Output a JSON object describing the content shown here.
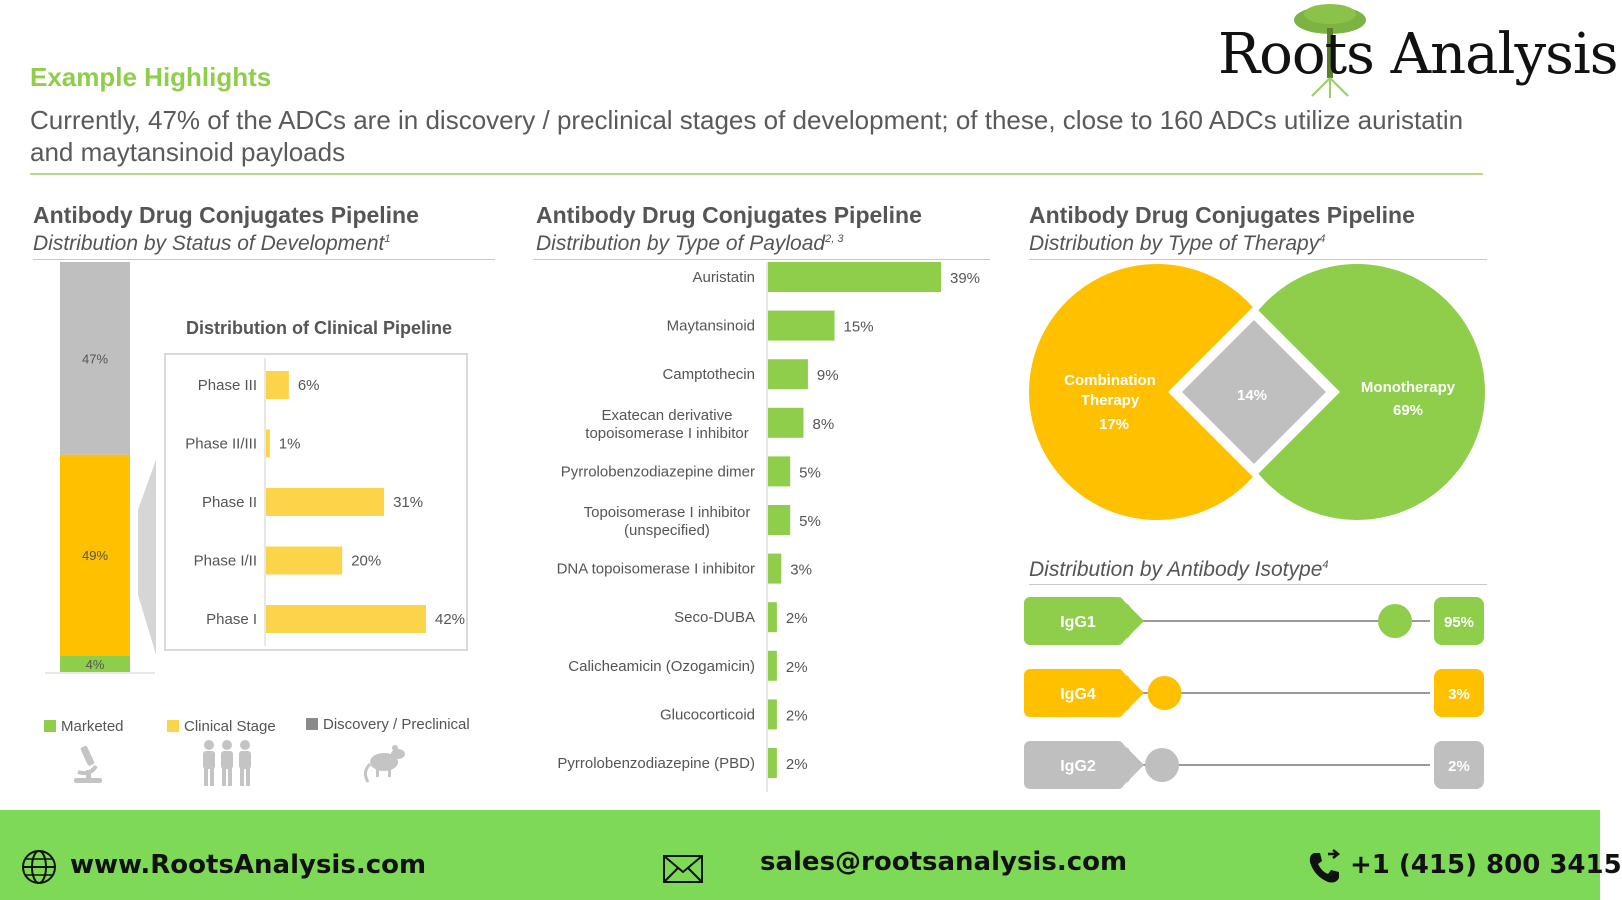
{
  "header": {
    "kicker": "Example Highlights",
    "headline": "Currently, 47% of the ADCs are in discovery / preclinical stages of development; of these, close to 160 ADCs utilize auristatin and maytansinoid payloads"
  },
  "logo": {
    "text": "Roots Analysis"
  },
  "panels": {
    "status": {
      "title": "Antibody Drug Conjugates Pipeline",
      "subtitle": "Distribution by Status of Development",
      "note": "1"
    },
    "payload": {
      "title": "Antibody Drug Conjugates Pipeline",
      "subtitle": "Distribution by Type of Payload",
      "note": "2, 3"
    },
    "therapy": {
      "title": "Antibody Drug Conjugates Pipeline",
      "subtitle": "Distribution by Type of Therapy",
      "note": "4"
    },
    "isotype": {
      "subtitle": "Distribution by Antibody Isotype",
      "note": "4"
    }
  },
  "legend": {
    "marketed": "Marketed",
    "clinical": "Clinical Stage",
    "discovery": "Discovery / Preclinical"
  },
  "footer": {
    "website": "www.RootsAnalysis.com",
    "email": "sales@rootsanalysis.com",
    "phone": "+1 (415) 800 3415"
  },
  "colors": {
    "green": "#8fce4a",
    "yellow": "#ffc000",
    "gray": "#bfbfbf",
    "clinical_bar": "#fcd449",
    "footer": "#7ed957"
  },
  "icons": [
    "microscope-icon",
    "people-icon",
    "rat-icon",
    "globe-icon",
    "envelope-icon",
    "phone-icon"
  ],
  "chart_data": [
    {
      "type": "bar",
      "id": "status",
      "stacked": true,
      "categories": [
        "Status of Development"
      ],
      "series": [
        {
          "name": "Marketed",
          "values": [
            4
          ]
        },
        {
          "name": "Clinical Stage",
          "values": [
            49
          ]
        },
        {
          "name": "Discovery / Preclinical",
          "values": [
            47
          ]
        }
      ],
      "labels": [
        "4%",
        "49%",
        "47%"
      ],
      "ylim": [
        0,
        100
      ]
    },
    {
      "type": "bar",
      "id": "clinical",
      "orientation": "horizontal",
      "title": "Distribution of Clinical Pipeline",
      "categories": [
        "Phase III",
        "Phase II/III",
        "Phase II",
        "Phase I/II",
        "Phase I"
      ],
      "values": [
        6,
        1,
        31,
        20,
        42
      ],
      "labels": [
        "6%",
        "1%",
        "31%",
        "20%",
        "42%"
      ]
    },
    {
      "type": "bar",
      "id": "payload",
      "orientation": "horizontal",
      "categories": [
        [
          "Auristatin"
        ],
        [
          "Maytansinoid"
        ],
        [
          "Camptothecin"
        ],
        [
          "Exatecan derivative",
          "topoisomerase I inhibitor"
        ],
        [
          "Pyrrolobenzodiazepine dimer"
        ],
        [
          "Topoisomerase I inhibitor",
          "(unspecified)"
        ],
        [
          "DNA topoisomerase I inhibitor"
        ],
        [
          "Seco-DUBA"
        ],
        [
          "Calicheamicin (Ozogamicin)"
        ],
        [
          "Glucocorticoid"
        ],
        [
          "Pyrrolobenzodiazepine (PBD)"
        ]
      ],
      "values": [
        39,
        15,
        9,
        8,
        5,
        5,
        3,
        2,
        2,
        2,
        2
      ],
      "labels": [
        "39%",
        "15%",
        "9%",
        "8%",
        "5%",
        "5%",
        "3%",
        "2%",
        "2%",
        "2%",
        "2%"
      ]
    },
    {
      "type": "pie",
      "id": "therapy",
      "segments": [
        {
          "label": [
            "Combination",
            "Therapy"
          ],
          "value": 17,
          "value_label": "17%"
        },
        {
          "label": [],
          "value": 14,
          "value_label": "14%"
        },
        {
          "label": [
            "Monotherapy"
          ],
          "value": 69,
          "value_label": "69%"
        }
      ]
    },
    {
      "type": "scatter",
      "id": "isotype",
      "categories": [
        "IgG1",
        "IgG4",
        "IgG2"
      ],
      "values": [
        95,
        3,
        2
      ],
      "labels": [
        "95%",
        "3%",
        "2%"
      ],
      "xlim": [
        0,
        100
      ]
    }
  ]
}
